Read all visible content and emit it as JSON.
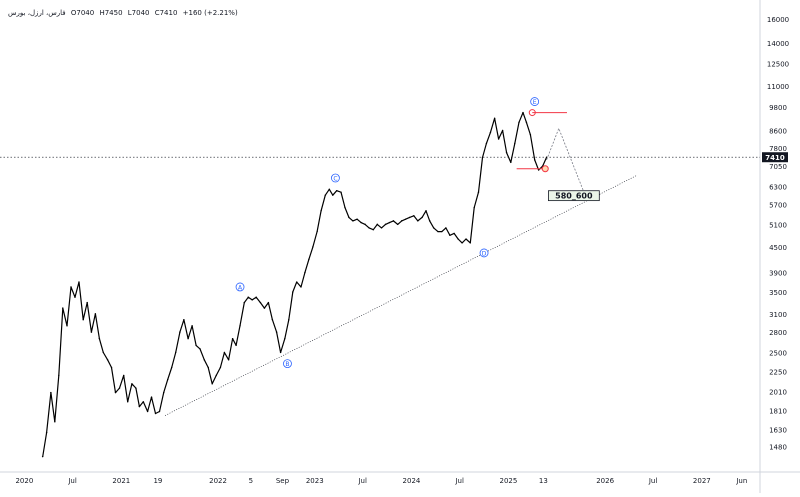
{
  "legend": {
    "symbol": "فارس، ارزل، بورس",
    "ohlc": [
      "O7040",
      "H7450",
      "L7040",
      "C7410",
      "+160 (+2.21%)"
    ]
  },
  "price_tag": "7410",
  "chart_data": {
    "type": "line",
    "title": "",
    "xlabel": "",
    "ylabel": "",
    "y_scale": "log",
    "ylim": [
      1300,
      17000
    ],
    "xlim": [
      "2019-10-01",
      "2027-08-01"
    ],
    "grid": false,
    "y_ticks": [
      16000,
      14000,
      12500,
      11000,
      9800,
      8600,
      7800,
      7050,
      6300,
      5700,
      5100,
      4500,
      3900,
      3500,
      3100,
      2800,
      2500,
      2250,
      2010,
      1810,
      1630,
      1480
    ],
    "x_ticks": [
      {
        "label": "2020",
        "date": "2020-01-01"
      },
      {
        "label": "Jul",
        "date": "2020-07-01"
      },
      {
        "label": "2021",
        "date": "2021-01-01"
      },
      {
        "label": "19",
        "date": "2021-05-19"
      },
      {
        "label": "2022",
        "date": "2022-01-01"
      },
      {
        "label": "5",
        "date": "2022-05-05"
      },
      {
        "label": "Sep",
        "date": "2022-09-01"
      },
      {
        "label": "2023",
        "date": "2023-01-01"
      },
      {
        "label": "Jul",
        "date": "2023-07-01"
      },
      {
        "label": "2024",
        "date": "2024-01-01"
      },
      {
        "label": "Jul",
        "date": "2024-07-01"
      },
      {
        "label": "2025",
        "date": "2025-01-01"
      },
      {
        "label": "13",
        "date": "2025-05-13"
      },
      {
        "label": "2026",
        "date": "2026-01-01"
      },
      {
        "label": "Jul",
        "date": "2026-07-01"
      },
      {
        "label": "2027",
        "date": "2027-01-01"
      },
      {
        "label": "Jun",
        "date": "2027-06-01"
      }
    ],
    "series": [
      {
        "x": [
          "2020-03-10",
          "2020-03-25",
          "2020-04-10",
          "2020-04-25",
          "2020-05-10",
          "2020-05-25",
          "2020-06-10",
          "2020-06-25",
          "2020-07-10",
          "2020-07-25",
          "2020-08-10",
          "2020-08-25",
          "2020-09-10",
          "2020-09-25",
          "2020-10-10",
          "2020-10-25",
          "2020-11-10",
          "2020-11-25",
          "2020-12-10",
          "2020-12-25",
          "2021-01-10",
          "2021-01-25",
          "2021-02-10",
          "2021-02-25",
          "2021-03-10",
          "2021-03-25",
          "2021-04-10",
          "2021-04-25",
          "2021-05-10",
          "2021-05-25",
          "2021-06-10",
          "2021-06-25",
          "2021-07-10",
          "2021-07-25",
          "2021-08-10",
          "2021-08-25",
          "2021-09-10",
          "2021-09-25",
          "2021-10-10",
          "2021-10-25",
          "2021-11-10",
          "2021-11-25",
          "2021-12-10",
          "2021-12-25",
          "2022-01-10",
          "2022-01-25",
          "2022-02-10",
          "2022-02-25",
          "2022-03-10",
          "2022-03-25",
          "2022-04-10",
          "2022-04-25",
          "2022-05-10",
          "2022-05-25",
          "2022-06-10",
          "2022-06-25",
          "2022-07-10",
          "2022-07-25",
          "2022-08-10",
          "2022-08-25",
          "2022-09-10",
          "2022-09-25",
          "2022-10-10",
          "2022-10-25",
          "2022-11-10",
          "2022-11-25",
          "2022-12-10",
          "2022-12-25",
          "2023-01-10",
          "2023-01-25",
          "2023-02-10",
          "2023-02-25",
          "2023-03-10",
          "2023-03-25",
          "2023-04-10",
          "2023-04-25",
          "2023-05-10",
          "2023-05-25",
          "2023-06-10",
          "2023-06-25",
          "2023-07-10",
          "2023-07-25",
          "2023-08-10",
          "2023-08-25",
          "2023-09-10",
          "2023-09-25",
          "2023-10-10",
          "2023-10-25",
          "2023-11-10",
          "2023-11-25",
          "2023-12-10",
          "2023-12-25",
          "2024-01-10",
          "2024-01-25",
          "2024-02-10",
          "2024-02-25",
          "2024-03-10",
          "2024-03-25",
          "2024-04-10",
          "2024-04-25",
          "2024-05-10",
          "2024-05-25",
          "2024-06-10",
          "2024-06-25",
          "2024-07-10",
          "2024-07-25",
          "2024-08-10",
          "2024-08-25",
          "2024-09-10",
          "2024-09-25",
          "2024-10-10",
          "2024-10-25",
          "2024-11-10",
          "2024-11-25",
          "2024-12-10",
          "2024-12-25",
          "2025-01-10",
          "2025-01-25",
          "2025-02-10",
          "2025-02-25",
          "2025-03-10",
          "2025-03-25",
          "2025-04-10",
          "2025-04-25",
          "2025-05-10",
          "2025-05-25"
        ],
        "values": [
          1400,
          1600,
          2000,
          1700,
          2200,
          3200,
          2900,
          3600,
          3400,
          3700,
          3000,
          3300,
          2800,
          3100,
          2700,
          2500,
          2400,
          2300,
          2000,
          2050,
          2200,
          1900,
          2100,
          2050,
          1850,
          1900,
          1800,
          1950,
          1780,
          1800,
          2000,
          2150,
          2300,
          2500,
          2800,
          3000,
          2700,
          2900,
          2600,
          2550,
          2400,
          2300,
          2100,
          2200,
          2300,
          2500,
          2400,
          2700,
          2600,
          2900,
          3300,
          3400,
          3350,
          3400,
          3300,
          3200,
          3300,
          3000,
          2800,
          2500,
          2700,
          3000,
          3500,
          3700,
          3600,
          3900,
          4200,
          4500,
          4900,
          5500,
          6000,
          6200,
          6000,
          6150,
          6100,
          5600,
          5300,
          5200,
          5250,
          5150,
          5100,
          5000,
          4950,
          5100,
          5000,
          5100,
          5150,
          5200,
          5100,
          5200,
          5250,
          5300,
          5350,
          5200,
          5300,
          5500,
          5200,
          5000,
          4900,
          4900,
          5000,
          4800,
          4850,
          4700,
          4600,
          4700,
          4600,
          5600,
          6100,
          7400,
          8000,
          8500,
          9200,
          8200,
          8600,
          7600,
          7200,
          8000,
          9000,
          9500,
          9000,
          8400,
          7300,
          6900,
          7050,
          7410
        ]
      }
    ],
    "wave_labels": [
      {
        "label": "A",
        "date": "2022-03-25",
        "value": 3600
      },
      {
        "label": "B",
        "date": "2022-09-20",
        "value": 2350
      },
      {
        "label": "C",
        "date": "2023-03-20",
        "value": 6600
      },
      {
        "label": "D",
        "date": "2024-10-01",
        "value": 4350
      },
      {
        "label": "E",
        "date": "2025-04-10",
        "value": 10100
      }
    ],
    "trendline": {
      "start": {
        "date": "2021-06-15",
        "value": 1760
      },
      "end": {
        "date": "2026-05-01",
        "value": 6700
      }
    },
    "current_price_line": 7410,
    "target_box": {
      "label": "580_600",
      "start": "2025-06-01",
      "end": "2025-12-10",
      "top": 6150,
      "bottom": 5820
    },
    "resistance_line": {
      "value": 9500,
      "start": "2025-04-01",
      "end": "2025-08-10"
    },
    "support_line": {
      "value": 6950,
      "start": "2025-02-01",
      "end": "2025-05-20"
    },
    "projection": [
      {
        "date": "2025-05-25",
        "value": 7300
      },
      {
        "date": "2025-07-10",
        "value": 8700
      },
      {
        "date": "2025-10-15",
        "value": 6050
      }
    ],
    "colors": {
      "price": "#000000",
      "wave_label": "#2962ff",
      "resistance": "#f23645",
      "current_price_tag": "#131722",
      "target_box_fill": "#ebf5e8"
    }
  }
}
